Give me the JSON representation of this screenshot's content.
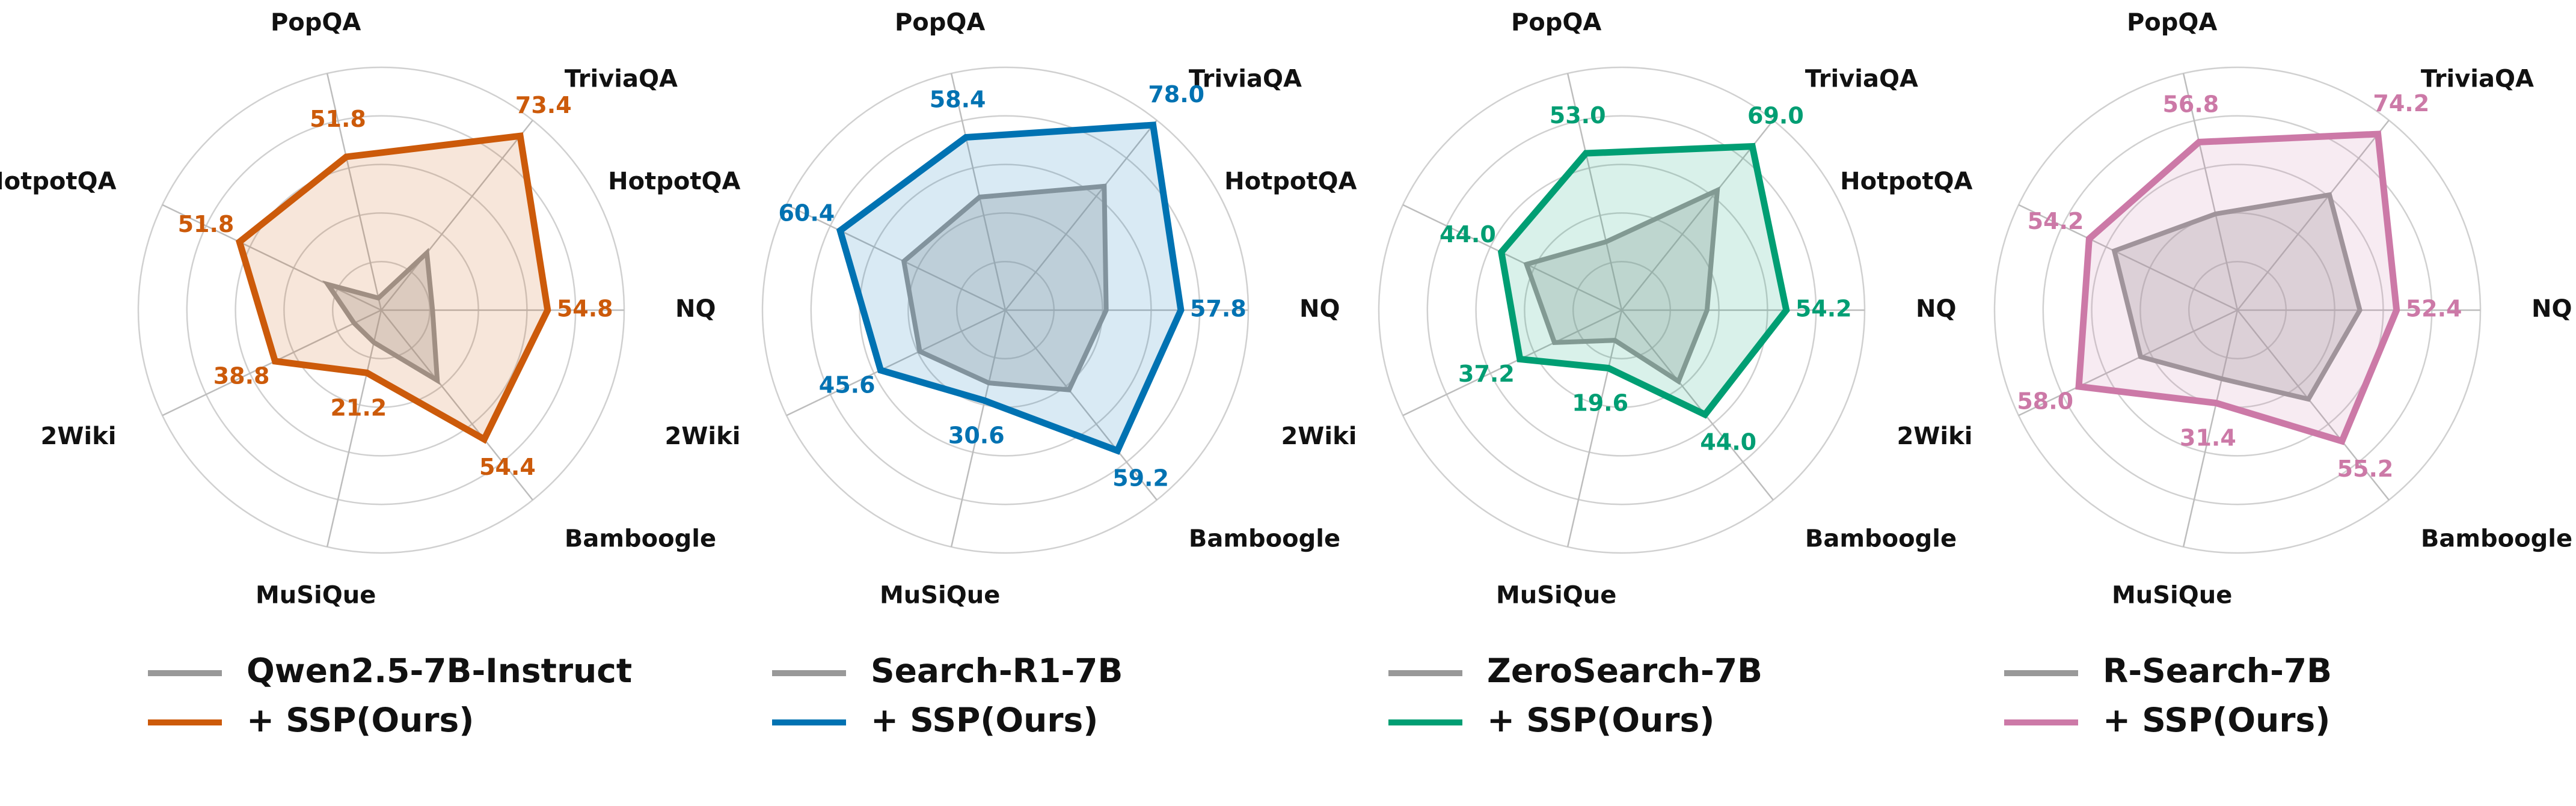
{
  "chart_data": [
    {
      "type": "radar",
      "categories": [
        "NQ",
        "TriviaQA",
        "PopQA",
        "HotpotQA",
        "2Wiki",
        "MuSiQue",
        "Bamboogle"
      ],
      "series": [
        {
          "name": "Qwen2.5-7B-Instruct",
          "color": "#999999",
          "values": [
            16.9,
            24.1,
            4.1,
            19.5,
            9.9,
            10.9,
            29.6
          ]
        },
        {
          "name": "+ SSP(Ours)",
          "color": "#cc5a0a",
          "values": [
            54.8,
            73.4,
            51.8,
            51.8,
            38.8,
            21.2,
            54.4
          ],
          "data_labels": true
        }
      ],
      "rlim": [
        0,
        80
      ],
      "rticks": [
        16,
        32,
        48,
        64,
        80
      ],
      "grid": true
    },
    {
      "type": "radar",
      "categories": [
        "NQ",
        "TriviaQA",
        "PopQA",
        "HotpotQA",
        "2Wiki",
        "MuSiQue",
        "Bamboogle"
      ],
      "series": [
        {
          "name": "Search-R1-7B",
          "color": "#999999",
          "values": [
            33.2,
            52.2,
            38.2,
            37.1,
            31.3,
            24.6,
            33.6
          ]
        },
        {
          "name": "+ SSP(Ours)",
          "color": "#0072b2",
          "values": [
            57.8,
            78.0,
            58.4,
            60.4,
            45.6,
            30.6,
            59.2
          ],
          "value_labels": [
            "57.8",
            "78.0",
            "58.4",
            "60.4",
            "45.6",
            "30.6",
            "59.2"
          ],
          "data_labels": true
        }
      ],
      "rlim": [
        0,
        80
      ],
      "rticks": [
        16,
        32,
        48,
        64,
        80
      ],
      "grid": true
    },
    {
      "type": "radar",
      "categories": [
        "NQ",
        "TriviaQA",
        "PopQA",
        "HotpotQA",
        "2Wiki",
        "MuSiQue",
        "Bamboogle"
      ],
      "series": [
        {
          "name": "ZeroSearch-7B",
          "color": "#999999",
          "values": [
            28.1,
            50.5,
            23.1,
            34.8,
            24.6,
            10.2,
            30.0
          ]
        },
        {
          "name": "+ SSP(Ours)",
          "color": "#009e73",
          "values": [
            54.2,
            69.0,
            53.0,
            44.0,
            37.2,
            19.6,
            44.0
          ],
          "value_labels": [
            "54.2",
            "69.0",
            "53.0",
            "44.0",
            "37.2",
            "19.6",
            "44.0"
          ],
          "data_labels": true
        }
      ],
      "rlim": [
        0,
        80
      ],
      "rticks": [
        16,
        32,
        48,
        64,
        80
      ],
      "grid": true
    },
    {
      "type": "radar",
      "categories": [
        "NQ",
        "TriviaQA",
        "PopQA",
        "HotpotQA",
        "2Wiki",
        "MuSiQue",
        "Bamboogle"
      ],
      "series": [
        {
          "name": "R-Search-7B",
          "color": "#999999",
          "values": [
            40.3,
            48.6,
            32.5,
            45.0,
            35.4,
            23.2,
            37.5
          ]
        },
        {
          "name": "+ SSP(Ours)",
          "color": "#cc79a7",
          "values": [
            52.4,
            74.2,
            56.8,
            54.2,
            58.0,
            31.4,
            55.2
          ],
          "value_labels": [
            "52.4",
            "74.2",
            "56.8",
            "54.2",
            "58.0",
            "31.4",
            "55.2"
          ],
          "data_labels": true
        }
      ],
      "rlim": [
        0,
        80
      ],
      "rticks": [
        16,
        32,
        48,
        64,
        80
      ],
      "grid": true
    }
  ]
}
